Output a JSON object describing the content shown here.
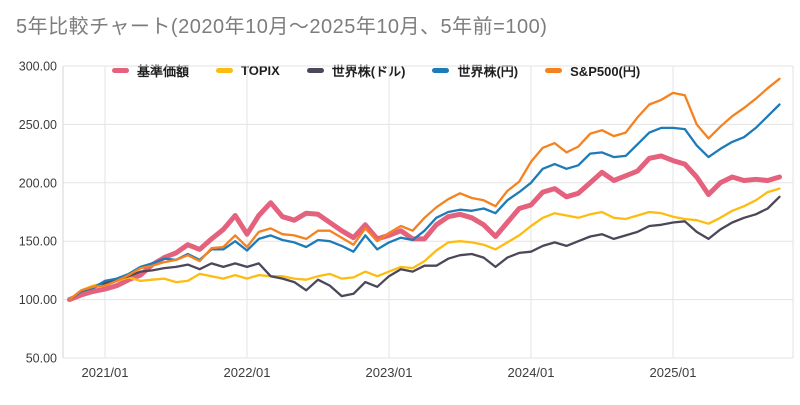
{
  "page": {
    "title": "5年比較チャート(2020年10月〜2025年10月、5年前=100)"
  },
  "chart_data": {
    "type": "line",
    "title": "5年比較チャート(2020年10月〜2025年10月、5年前=100)",
    "x_range": [
      "2020/10",
      "2025/10"
    ],
    "frequency": "monthly",
    "baseline_note": "5年前=100",
    "grid": true,
    "legend_position": "top",
    "ylim": [
      50,
      300
    ],
    "y_ticks": [
      300,
      250,
      200,
      150,
      100,
      50
    ],
    "y_tick_labels": [
      "300.00",
      "250.00",
      "200.00",
      "150.00",
      "100.00",
      "50.00"
    ],
    "x_tick_labels": [
      "2021/01",
      "2022/01",
      "2023/01",
      "2024/01",
      "2025/01"
    ],
    "x_tick_month_indices": [
      3,
      15,
      27,
      39,
      51
    ],
    "colors": {
      "grid": "#e3e3e3",
      "axis": "#d6d6d6",
      "title_text": "#7d7d7d",
      "tick_text": "#3c3c3c"
    },
    "series": [
      {
        "name": "基準価額",
        "color": "#e4627d",
        "stroke_width": 5,
        "values": [
          100,
          104,
          107,
          109,
          112,
          117,
          121,
          130,
          136,
          140,
          147,
          143,
          152,
          160,
          172,
          156,
          172,
          183,
          171,
          168,
          174,
          173,
          166,
          159,
          153,
          164,
          152,
          155,
          159,
          152,
          152,
          164,
          171,
          173,
          170,
          164,
          154,
          166,
          178,
          181,
          192,
          195,
          188,
          191,
          200,
          209,
          202,
          206,
          210,
          221,
          223,
          219,
          216,
          205,
          190,
          200,
          205,
          202,
          203,
          202,
          205
        ]
      },
      {
        "name": "TOPIX",
        "color": "#fcbd10",
        "stroke_width": 2.3,
        "values": [
          100,
          108,
          112,
          114,
          116,
          119,
          116,
          117,
          118,
          115,
          116,
          122,
          120,
          118,
          121,
          118,
          121,
          120,
          120,
          118,
          117,
          120,
          122,
          118,
          119,
          124,
          120,
          124,
          128,
          127,
          133,
          142,
          149,
          150,
          149,
          147,
          143,
          149,
          155,
          163,
          170,
          174,
          172,
          170,
          173,
          175,
          170,
          169,
          172,
          175,
          174,
          171,
          169,
          168,
          165,
          170,
          176,
          180,
          185,
          192,
          195
        ]
      },
      {
        "name": "世界株(ドル)",
        "color": "#4c4759",
        "stroke_width": 2.3,
        "values": [
          100,
          107,
          110,
          114,
          117,
          120,
          124,
          125,
          127,
          128,
          130,
          126,
          131,
          128,
          131,
          128,
          131,
          120,
          118,
          115,
          108,
          117,
          112,
          103,
          105,
          115,
          111,
          120,
          126,
          124,
          129,
          129,
          135,
          138,
          139,
          136,
          128,
          136,
          140,
          141,
          146,
          149,
          146,
          150,
          154,
          156,
          152,
          155,
          158,
          163,
          164,
          166,
          167,
          158,
          152,
          160,
          166,
          170,
          173,
          178,
          188
        ]
      },
      {
        "name": "世界株(円)",
        "color": "#1d7bb8",
        "stroke_width": 2.3,
        "values": [
          100,
          107,
          110,
          116,
          118,
          122,
          128,
          131,
          135,
          134,
          139,
          134,
          143,
          143,
          150,
          142,
          152,
          155,
          151,
          149,
          145,
          151,
          150,
          146,
          141,
          155,
          143,
          149,
          153,
          151,
          159,
          170,
          175,
          177,
          176,
          178,
          174,
          185,
          192,
          200,
          212,
          216,
          212,
          215,
          225,
          226,
          222,
          223,
          233,
          243,
          247,
          247,
          246,
          232,
          222,
          229,
          235,
          239,
          247,
          257,
          267
        ]
      },
      {
        "name": "S&P500(円)",
        "color": "#f5821f",
        "stroke_width": 2.3,
        "values": [
          100,
          108,
          111,
          112,
          116,
          121,
          127,
          129,
          132,
          134,
          138,
          133,
          144,
          145,
          155,
          145,
          158,
          161,
          156,
          155,
          152,
          159,
          159,
          153,
          147,
          161,
          150,
          157,
          163,
          159,
          170,
          179,
          186,
          191,
          187,
          185,
          180,
          193,
          201,
          218,
          230,
          234,
          226,
          231,
          242,
          245,
          240,
          243,
          256,
          267,
          271,
          277,
          275,
          250,
          238,
          248,
          257,
          264,
          272,
          281,
          289
        ]
      }
    ]
  }
}
